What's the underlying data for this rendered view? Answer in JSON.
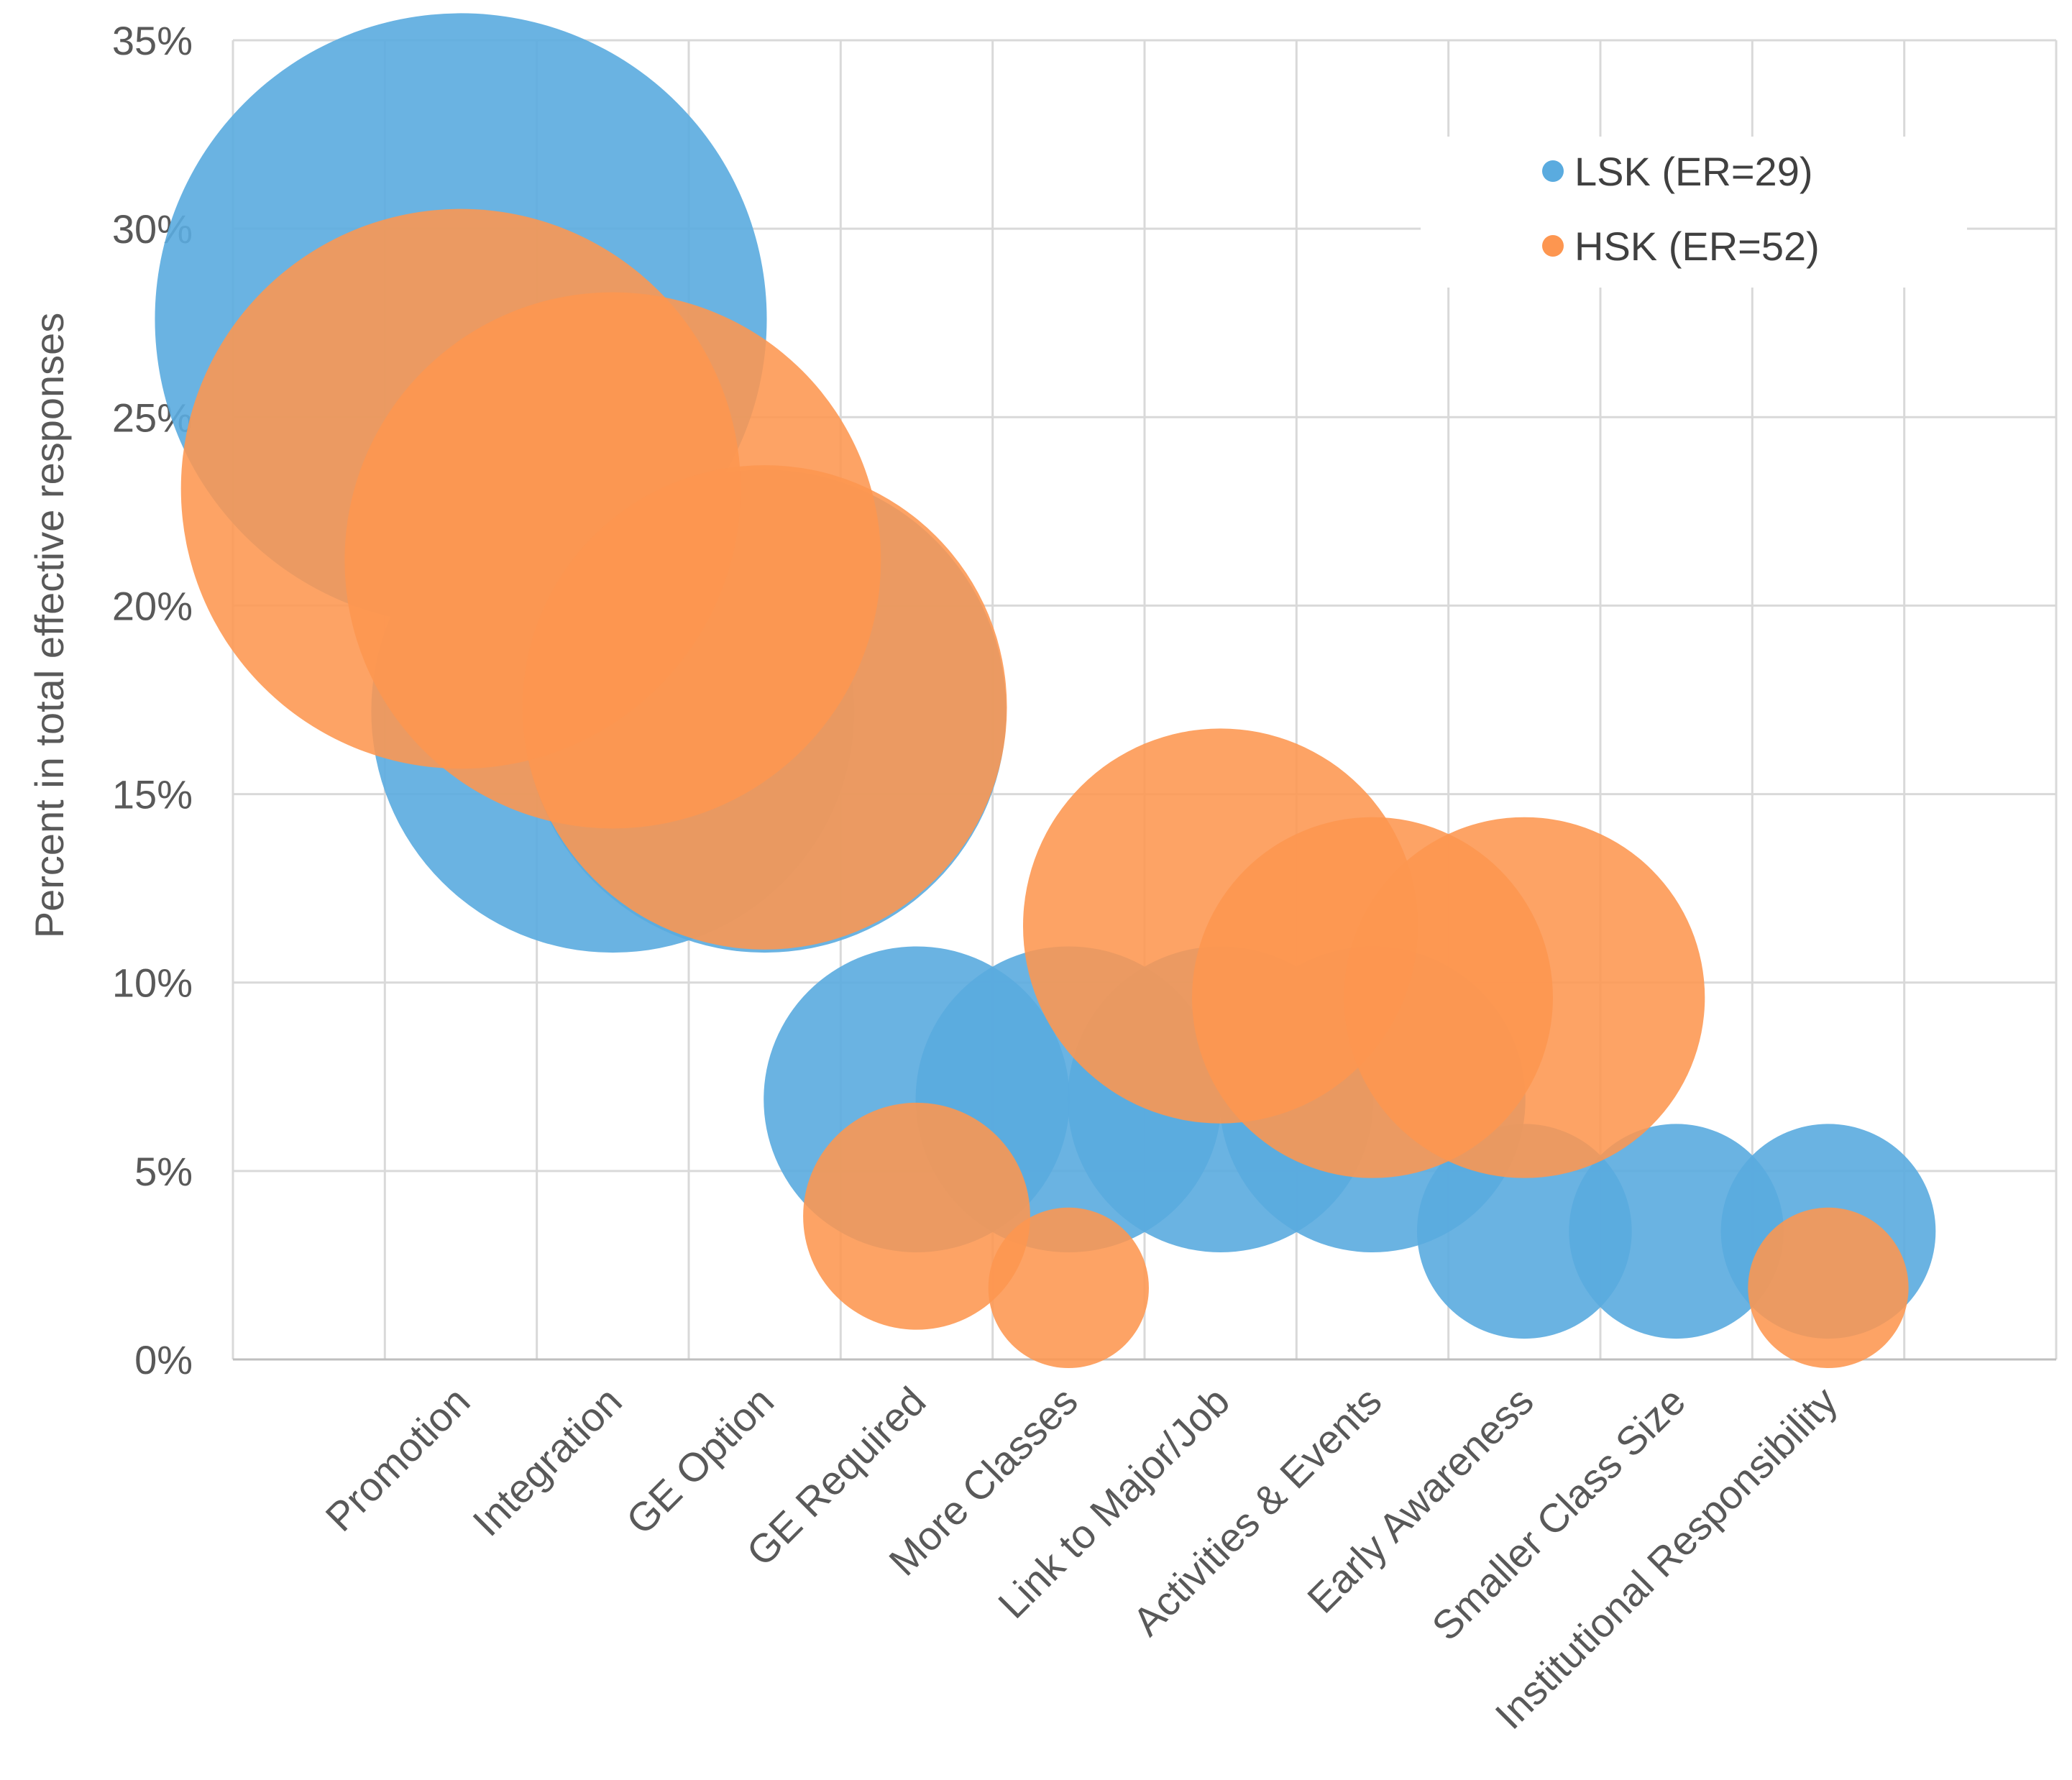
{
  "chart_data": {
    "type": "bubble",
    "title": "",
    "xlabel": "",
    "ylabel": "Percent in total effective responses",
    "ylim": [
      0,
      35
    ],
    "ytick_labels": [
      "0%",
      "5%",
      "10%",
      "15%",
      "20%",
      "25%",
      "30%",
      "35%"
    ],
    "ytick_values": [
      0,
      5,
      10,
      15,
      20,
      25,
      30,
      35
    ],
    "grid": true,
    "legend_position": "top-right",
    "categories": [
      "Promotion",
      "Integration",
      "GE Option",
      "GE Required",
      "More Classes",
      "Link to Major/Job",
      "Activities & Events",
      "Early Awareness",
      "Smaller Class Size",
      "Institutional Responsibility"
    ],
    "series": [
      {
        "name": "LSK (ER=29)",
        "color": "#5aabdf",
        "values": [
          27.6,
          17.2,
          17.2,
          6.9,
          6.9,
          6.9,
          6.9,
          3.4,
          3.4,
          3.4
        ]
      },
      {
        "name": "HSK (ER=52)",
        "color": "#fd9650",
        "values": [
          23.1,
          21.2,
          17.3,
          3.8,
          1.9,
          11.5,
          9.6,
          9.6,
          null,
          1.9
        ]
      }
    ]
  }
}
